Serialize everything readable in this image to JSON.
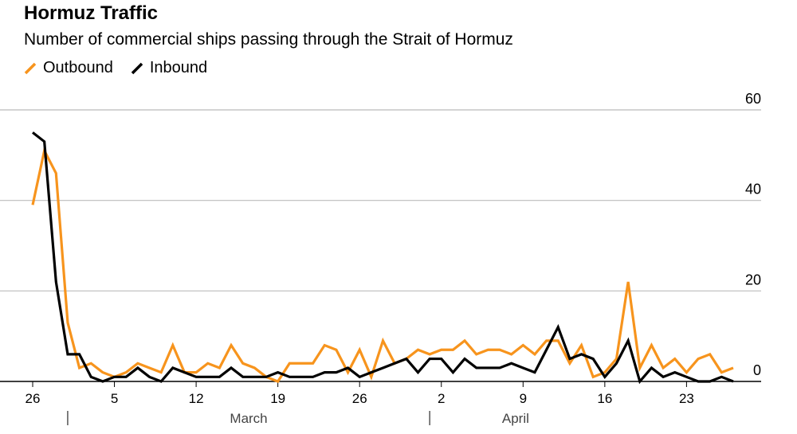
{
  "chart_data": {
    "type": "line",
    "title": "Hormuz Traffic",
    "subtitle": "Number of commercial ships passing through the Strait of Hormuz",
    "xlabel": "",
    "ylabel": "",
    "ylim": [
      0,
      60
    ],
    "yticks": [
      0,
      20,
      40,
      60
    ],
    "x_start": "Feb 26",
    "x_end": "Apr 27",
    "xtick_labels": [
      {
        "day": 0,
        "label": "26"
      },
      {
        "day": 7,
        "label": "5"
      },
      {
        "day": 14,
        "label": "12"
      },
      {
        "day": 21,
        "label": "19"
      },
      {
        "day": 28,
        "label": "26"
      },
      {
        "day": 35,
        "label": "2"
      },
      {
        "day": 42,
        "label": "9"
      },
      {
        "day": 49,
        "label": "16"
      },
      {
        "day": 56,
        "label": "23"
      }
    ],
    "months": [
      {
        "day": 3,
        "label": "March"
      },
      {
        "day": 34,
        "label": "April"
      }
    ],
    "legend_position": "top-left",
    "series": [
      {
        "name": "Outbound",
        "color": "#f7941d",
        "values": [
          39,
          51,
          46,
          13,
          3,
          4,
          2,
          1,
          2,
          4,
          3,
          2,
          8,
          2,
          2,
          4,
          3,
          8,
          4,
          3,
          1,
          0,
          4,
          4,
          4,
          8,
          7,
          2,
          7,
          1,
          9,
          4,
          5,
          7,
          6,
          7,
          7,
          9,
          6,
          7,
          7,
          6,
          8,
          6,
          9,
          9,
          4,
          8,
          1,
          2,
          5,
          22,
          3,
          8,
          3,
          5,
          2,
          5,
          6,
          2,
          3
        ]
      },
      {
        "name": "Inbound",
        "color": "#000000",
        "values": [
          55,
          53,
          22,
          6,
          6,
          1,
          0,
          1,
          1,
          3,
          1,
          0,
          3,
          2,
          1,
          1,
          1,
          3,
          1,
          1,
          1,
          2,
          1,
          1,
          1,
          2,
          2,
          3,
          1,
          2,
          3,
          4,
          5,
          2,
          5,
          5,
          2,
          5,
          3,
          3,
          3,
          4,
          3,
          2,
          7,
          12,
          5,
          6,
          5,
          1,
          4,
          9,
          0,
          3,
          1,
          2,
          1,
          0,
          0,
          1,
          0
        ]
      }
    ]
  }
}
